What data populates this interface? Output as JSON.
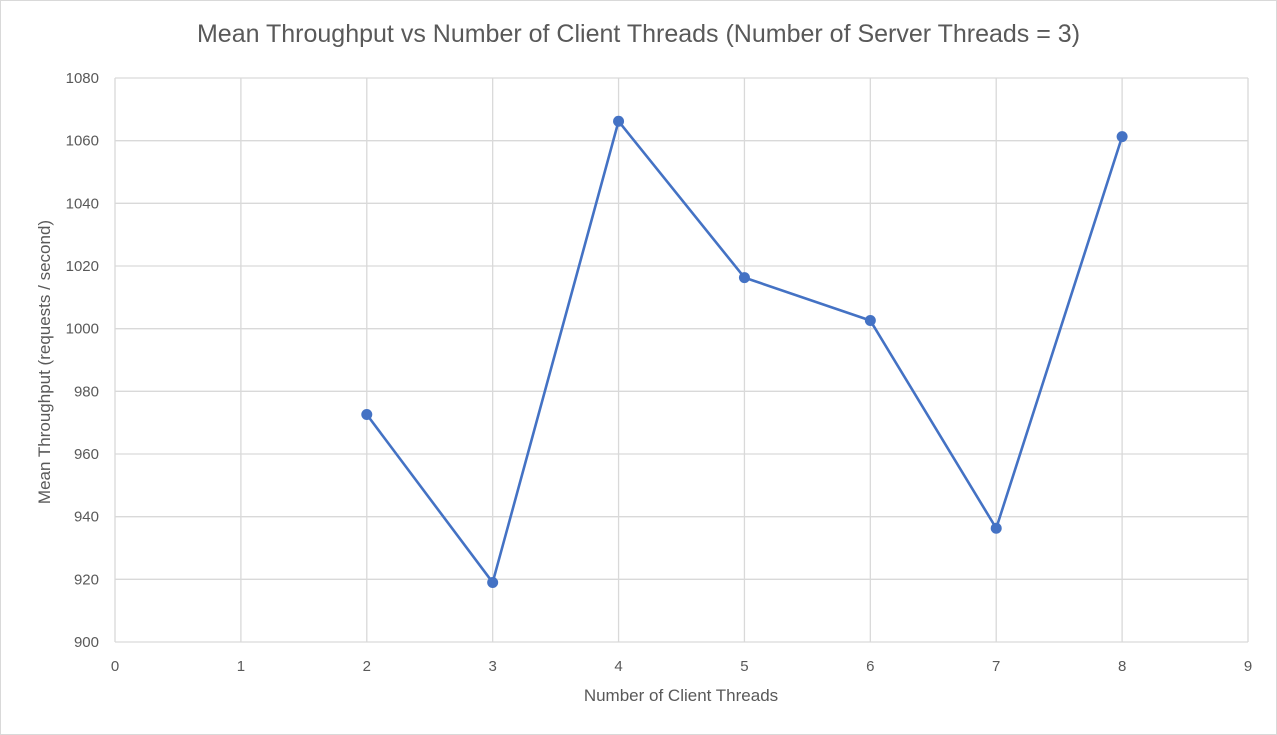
{
  "chart_data": {
    "type": "line",
    "title": "Mean Throughput vs Number of Client Threads (Number of Server Threads = 3)",
    "xlabel": "Number of Client Threads",
    "ylabel": "Mean Throughput (requests / second)",
    "xlim": [
      0,
      9
    ],
    "ylim": [
      900,
      1080
    ],
    "x_ticks": [
      "0",
      "1",
      "2",
      "3",
      "4",
      "5",
      "6",
      "7",
      "8",
      "9"
    ],
    "y_ticks": [
      "900",
      "920",
      "940",
      "960",
      "980",
      "1000",
      "1020",
      "1040",
      "1060",
      "1080"
    ],
    "grid": true,
    "legend": "none",
    "series": [
      {
        "color": "#4472c4",
        "points": [
          {
            "x": 2,
            "y": 972.6
          },
          {
            "x": 3,
            "y": 919.0
          },
          {
            "x": 4,
            "y": 1066.2
          },
          {
            "x": 5,
            "y": 1016.3
          },
          {
            "x": 6,
            "y": 1002.6
          },
          {
            "x": 7,
            "y": 936.3
          },
          {
            "x": 8,
            "y": 1061.3
          }
        ]
      }
    ]
  },
  "colors": {
    "grid": "#d9d9d9",
    "series": "#4472c4",
    "text": "#595959"
  }
}
